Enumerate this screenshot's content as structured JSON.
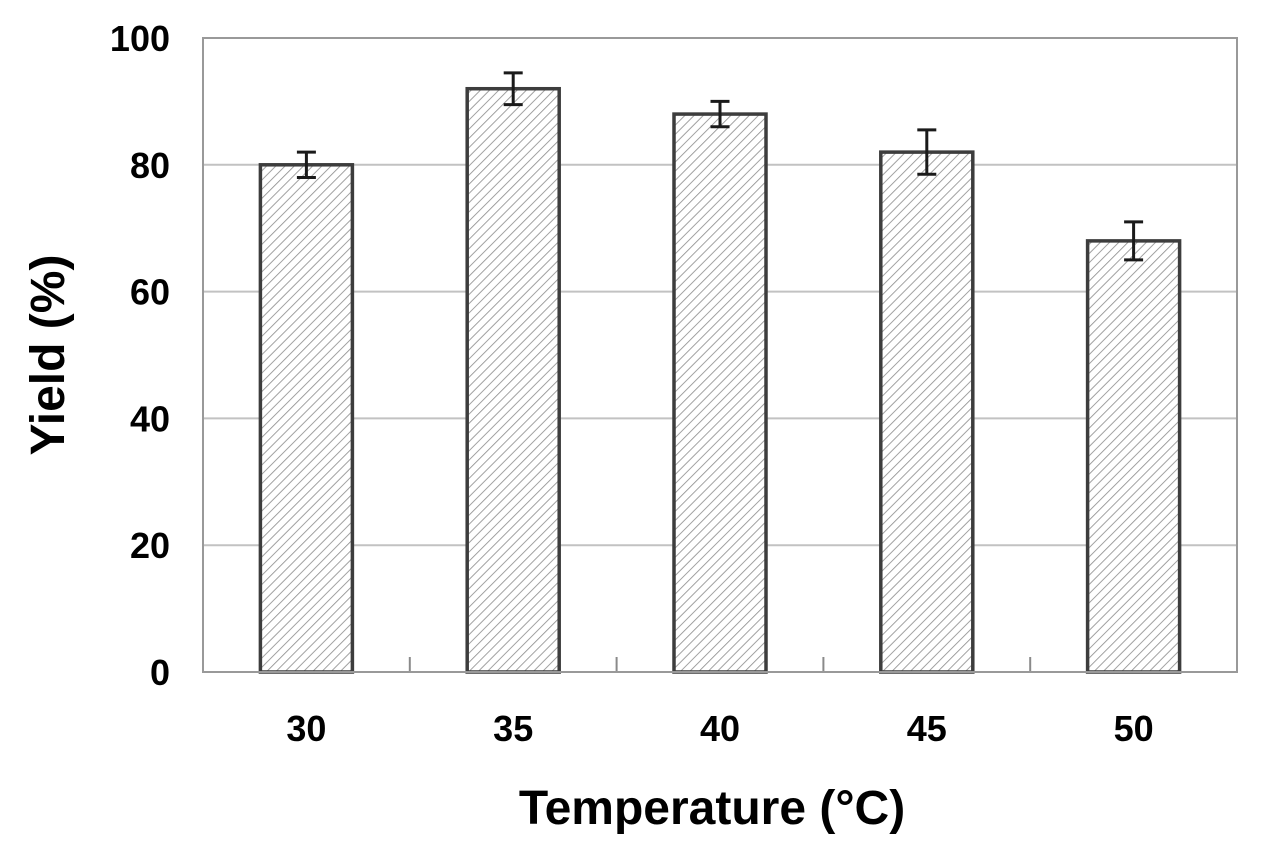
{
  "chart_data": {
    "type": "bar",
    "title": "",
    "xlabel": "Temperature (°C)",
    "ylabel": "Yield (%)",
    "categories": [
      "30",
      "35",
      "40",
      "45",
      "50"
    ],
    "values": [
      80,
      92,
      88,
      82,
      68
    ],
    "error_bars": [
      2,
      2.5,
      2,
      3.5,
      3
    ],
    "ylim": [
      0,
      100
    ],
    "ytick_step": 20,
    "ytick_labels": [
      "0",
      "20",
      "40",
      "60",
      "80",
      "100"
    ],
    "grid": "horizontal",
    "legend": "none",
    "bar_fill": "diagonal-hatch",
    "colors": {
      "background": "#ffffff",
      "grid_line": "#c2c2c2",
      "plot_frame": "#999999",
      "bar_border": "#3d3d3d",
      "bar_hatch": "#909090",
      "bar_background": "#ffffff",
      "error_bar": "#1a1a1a",
      "tick_mark": "#8a8a8a",
      "text": "#000000"
    }
  }
}
